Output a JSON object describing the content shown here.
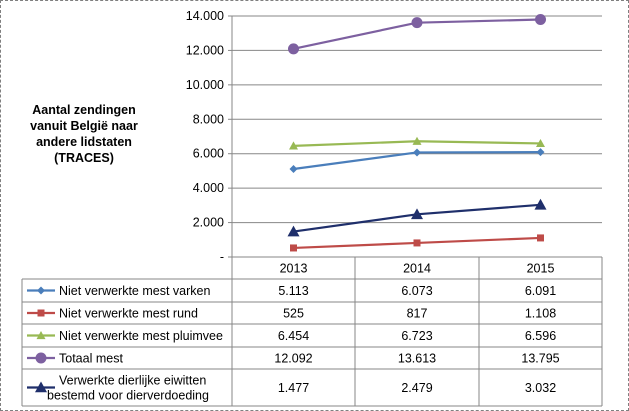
{
  "chart_data": {
    "type": "line",
    "ylabel_lines": [
      "Aantal zendingen",
      "vanuit België naar",
      "andere lidstaten",
      "(TRACES)"
    ],
    "y_ticks": [
      "-",
      "2.000",
      "4.000",
      "6.000",
      "8.000",
      "10.000",
      "12.000",
      "14.000"
    ],
    "ylim": [
      0,
      14000
    ],
    "grid": true,
    "categories": [
      "2013",
      "2014",
      "2015"
    ],
    "series": [
      {
        "name": "Niet verwerkte mest varken",
        "color": "#4a7ebb",
        "marker": "diamond",
        "values": [
          5113,
          6073,
          6091
        ],
        "labels": [
          "5.113",
          "6.073",
          "6.091"
        ]
      },
      {
        "name": "Niet verwerkte mest rund",
        "color": "#be4b48",
        "marker": "square",
        "values": [
          525,
          817,
          1108
        ],
        "labels": [
          "525",
          "817",
          "1.108"
        ]
      },
      {
        "name": "Niet verwerkte mest pluimvee",
        "color": "#98b954",
        "marker": "triangle",
        "values": [
          6454,
          6723,
          6596
        ],
        "labels": [
          "6.454",
          "6.723",
          "6.596"
        ]
      },
      {
        "name": "Totaal mest",
        "color": "#7d60a0",
        "marker": "circle",
        "values": [
          12092,
          13613,
          13795
        ],
        "labels": [
          "12.092",
          "13.613",
          "13.795"
        ]
      },
      {
        "name_lines": [
          "Verwerkte dierlijke eiwitten",
          "bestemd voor dierverdoeding"
        ],
        "color": "#1f2f6b",
        "marker": "triangle",
        "values": [
          1477,
          2479,
          3032
        ],
        "labels": [
          "1.477",
          "2.479",
          "3.032"
        ]
      }
    ]
  }
}
